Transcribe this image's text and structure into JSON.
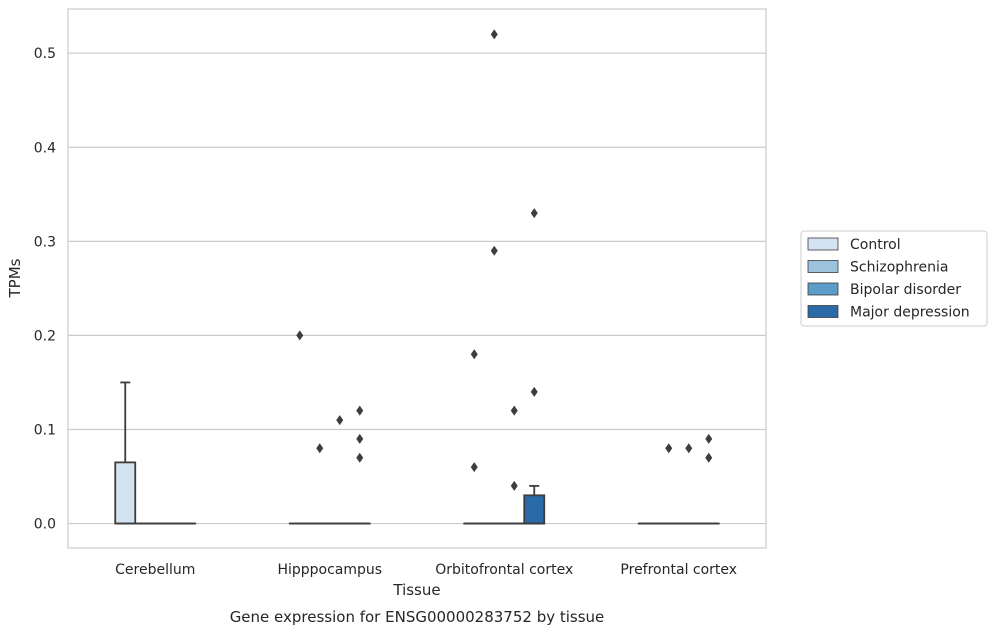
{
  "caption": "Gene expression for ENSG00000283752 by tissue",
  "chart_data": {
    "type": "box",
    "xlabel": "Tissue",
    "ylabel": "TPMs",
    "ylim": [
      -0.026,
      0.547
    ],
    "yticks": [
      0.0,
      0.1,
      0.2,
      0.3,
      0.4,
      0.5
    ],
    "ytick_labels": [
      "0.0",
      "0.1",
      "0.2",
      "0.3",
      "0.4",
      "0.5"
    ],
    "grid": "horizontal",
    "legend_position": "right",
    "categories": [
      "Cerebellum",
      "Hipppocampus",
      "Orbitofrontal cortex",
      "Prefrontal cortex"
    ],
    "series": [
      {
        "name": "Control",
        "color": "#d3e3f2",
        "boxes": [
          {
            "category": "Cerebellum",
            "q1": 0.0,
            "median": 0.0,
            "q3": 0.065,
            "whisker_low": 0.0,
            "whisker_high": 0.15,
            "outliers": []
          },
          {
            "category": "Hipppocampus",
            "q1": 0.0,
            "median": 0.0,
            "q3": 0.0,
            "whisker_low": 0.0,
            "whisker_high": 0.0,
            "outliers": [
              0.2
            ]
          },
          {
            "category": "Orbitofrontal cortex",
            "q1": 0.0,
            "median": 0.0,
            "q3": 0.0,
            "whisker_low": 0.0,
            "whisker_high": 0.0,
            "outliers": [
              0.06,
              0.18
            ]
          },
          {
            "category": "Prefrontal cortex",
            "q1": 0.0,
            "median": 0.0,
            "q3": 0.0,
            "whisker_low": 0.0,
            "whisker_high": 0.0,
            "outliers": []
          }
        ]
      },
      {
        "name": "Schizophrenia",
        "color": "#9cc2de",
        "boxes": [
          {
            "category": "Cerebellum",
            "q1": 0.0,
            "median": 0.0,
            "q3": 0.0,
            "whisker_low": 0.0,
            "whisker_high": 0.0,
            "outliers": []
          },
          {
            "category": "Hipppocampus",
            "q1": 0.0,
            "median": 0.0,
            "q3": 0.0,
            "whisker_low": 0.0,
            "whisker_high": 0.0,
            "outliers": [
              0.08
            ]
          },
          {
            "category": "Orbitofrontal cortex",
            "q1": 0.0,
            "median": 0.0,
            "q3": 0.0,
            "whisker_low": 0.0,
            "whisker_high": 0.0,
            "outliers": [
              0.29,
              0.52
            ]
          },
          {
            "category": "Prefrontal cortex",
            "q1": 0.0,
            "median": 0.0,
            "q3": 0.0,
            "whisker_low": 0.0,
            "whisker_high": 0.0,
            "outliers": [
              0.08
            ]
          }
        ]
      },
      {
        "name": "Bipolar disorder",
        "color": "#5b9cc8",
        "boxes": [
          {
            "category": "Cerebellum",
            "q1": 0.0,
            "median": 0.0,
            "q3": 0.0,
            "whisker_low": 0.0,
            "whisker_high": 0.0,
            "outliers": []
          },
          {
            "category": "Hipppocampus",
            "q1": 0.0,
            "median": 0.0,
            "q3": 0.0,
            "whisker_low": 0.0,
            "whisker_high": 0.0,
            "outliers": [
              0.11
            ]
          },
          {
            "category": "Orbitofrontal cortex",
            "q1": 0.0,
            "median": 0.0,
            "q3": 0.0,
            "whisker_low": 0.0,
            "whisker_high": 0.0,
            "outliers": [
              0.04,
              0.12
            ]
          },
          {
            "category": "Prefrontal cortex",
            "q1": 0.0,
            "median": 0.0,
            "q3": 0.0,
            "whisker_low": 0.0,
            "whisker_high": 0.0,
            "outliers": [
              0.08
            ]
          }
        ]
      },
      {
        "name": "Major depression",
        "color": "#2a6aa8",
        "boxes": [
          {
            "category": "Cerebellum",
            "q1": 0.0,
            "median": 0.0,
            "q3": 0.0,
            "whisker_low": 0.0,
            "whisker_high": 0.0,
            "outliers": []
          },
          {
            "category": "Hipppocampus",
            "q1": 0.0,
            "median": 0.0,
            "q3": 0.0,
            "whisker_low": 0.0,
            "whisker_high": 0.0,
            "outliers": [
              0.07,
              0.09,
              0.12
            ]
          },
          {
            "category": "Orbitofrontal cortex",
            "q1": 0.0,
            "median": 0.0,
            "q3": 0.03,
            "whisker_low": 0.0,
            "whisker_high": 0.04,
            "outliers": [
              0.14,
              0.33
            ]
          },
          {
            "category": "Prefrontal cortex",
            "q1": 0.0,
            "median": 0.0,
            "q3": 0.0,
            "whisker_low": 0.0,
            "whisker_high": 0.0,
            "outliers": [
              0.07,
              0.09
            ]
          }
        ]
      }
    ]
  }
}
